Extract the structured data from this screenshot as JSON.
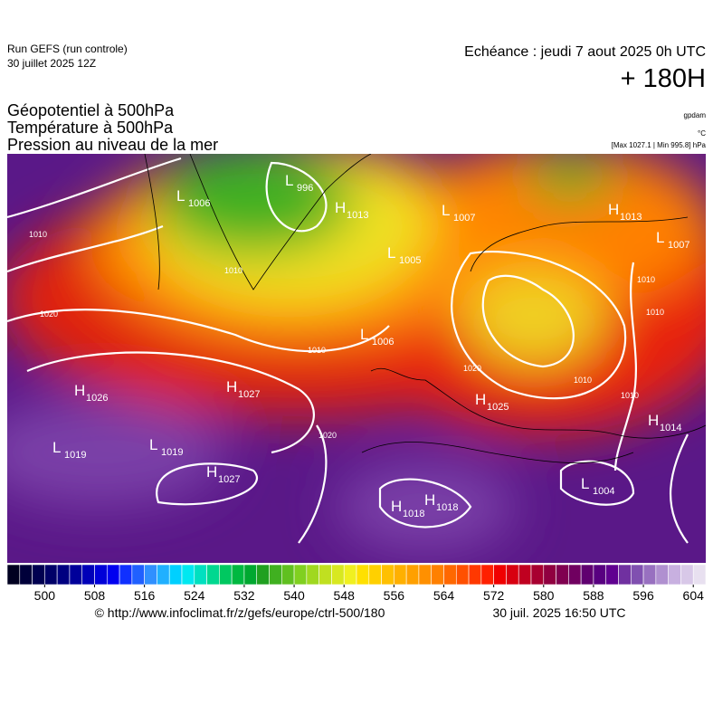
{
  "header": {
    "run": "Run GEFS (run controle)",
    "run_date": "30 juillet 2025 12Z",
    "valid": "Echéance : jeudi 7 aout 2025 0h UTC",
    "lead": "+ 180H",
    "fields": [
      "Géopotentiel à 500hPa",
      "Température à 500hPa",
      "Pression au niveau de la mer"
    ],
    "unit_geo": "gpdam",
    "unit_temp": "°C",
    "pressure_range": "[Max 1027.1 | Min 995.8] hPa"
  },
  "pressure_systems": [
    {
      "type": "H",
      "value": 1026
    },
    {
      "type": "H",
      "value": 1027
    },
    {
      "type": "L",
      "value": 1019
    },
    {
      "type": "L",
      "value": 1019
    },
    {
      "type": "H",
      "value": 1027
    },
    {
      "type": "L",
      "value": 1006
    },
    {
      "type": "L",
      "value": 996
    },
    {
      "type": "H",
      "value": 1013
    },
    {
      "type": "L",
      "value": 1007
    },
    {
      "type": "L",
      "value": 1005
    },
    {
      "type": "L",
      "value": 1006
    },
    {
      "type": "H",
      "value": 1013
    },
    {
      "type": "L",
      "value": 1007
    },
    {
      "type": "H",
      "value": 1025
    },
    {
      "type": "H",
      "value": 1014
    },
    {
      "type": "L",
      "value": 1004
    },
    {
      "type": "H",
      "value": 1018
    },
    {
      "type": "H",
      "value": 1018
    }
  ],
  "isobar_labels": [
    1010,
    1020,
    1010,
    1010,
    1020,
    1010,
    1010,
    1010,
    1010,
    1020
  ],
  "colorbar": {
    "lim": [
      494,
      606
    ],
    "step": 2,
    "ticks": [
      500,
      508,
      516,
      524,
      532,
      540,
      548,
      556,
      564,
      572,
      580,
      588,
      596,
      604
    ],
    "colors": [
      "#000020",
      "#00003a",
      "#000050",
      "#000068",
      "#000080",
      "#00009a",
      "#0000b8",
      "#0000d8",
      "#0000f0",
      "#1030ff",
      "#2060ff",
      "#3090ff",
      "#20b0ff",
      "#00d0ff",
      "#00e8f0",
      "#00e0c0",
      "#00d890",
      "#00c860",
      "#00b840",
      "#00a830",
      "#20a020",
      "#40b020",
      "#60c020",
      "#80d020",
      "#a0d820",
      "#c0e020",
      "#d8e820",
      "#f0f020",
      "#ffe000",
      "#ffd000",
      "#ffc000",
      "#ffb000",
      "#ffa000",
      "#ff9000",
      "#ff8000",
      "#ff6800",
      "#ff5000",
      "#ff3800",
      "#ff2000",
      "#f00000",
      "#d80010",
      "#c00020",
      "#a80030",
      "#900040",
      "#800050",
      "#700060",
      "#600070",
      "#580080",
      "#600090",
      "#7030a0",
      "#8050b0",
      "#9870c0",
      "#b090d0",
      "#c8b0e0",
      "#d8c8e8",
      "#e8e0f0"
    ]
  },
  "footer": {
    "url": "© http://www.infoclimat.fr/z/gefs/europe/ctrl-500/180",
    "generated": "30 juil. 2025 16:50 UTC"
  }
}
